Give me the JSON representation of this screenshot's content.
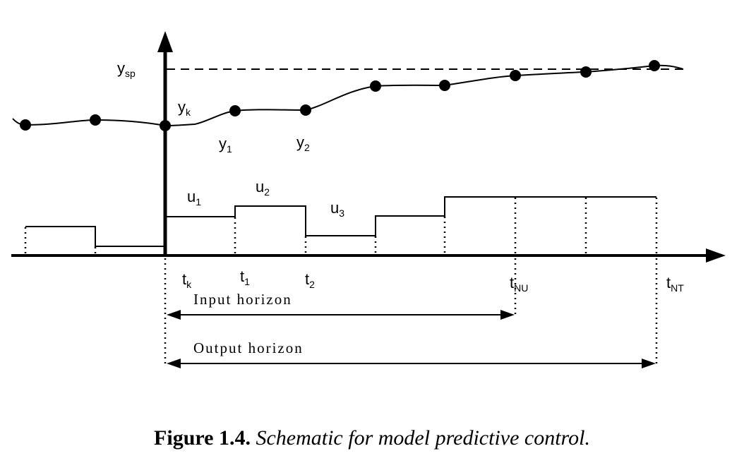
{
  "labels": {
    "y_sp_main": "y",
    "y_sp_sub": "sp",
    "y_k_main": "y",
    "y_k_sub": "k",
    "y_1_main": "y",
    "y_1_sub": "1",
    "y_2_main": "y",
    "y_2_sub": "2",
    "u_1_main": "u",
    "u_1_sub": "1",
    "u_2_main": "u",
    "u_2_sub": "2",
    "u_3_main": "u",
    "u_3_sub": "3",
    "t_k_main": "t",
    "t_k_sub": "k",
    "t_1_main": "t",
    "t_1_sub": "1",
    "t_2_main": "t",
    "t_2_sub": "2",
    "t_nu_main": "t",
    "t_nu_sub": "NU",
    "t_nt_main": "t",
    "t_nt_sub": "NT"
  },
  "horizons": {
    "input": "Input horizon",
    "output": "Output horizon"
  },
  "caption": {
    "number": "Figure 1.4.",
    "text": "Schematic for model predictive control."
  }
}
